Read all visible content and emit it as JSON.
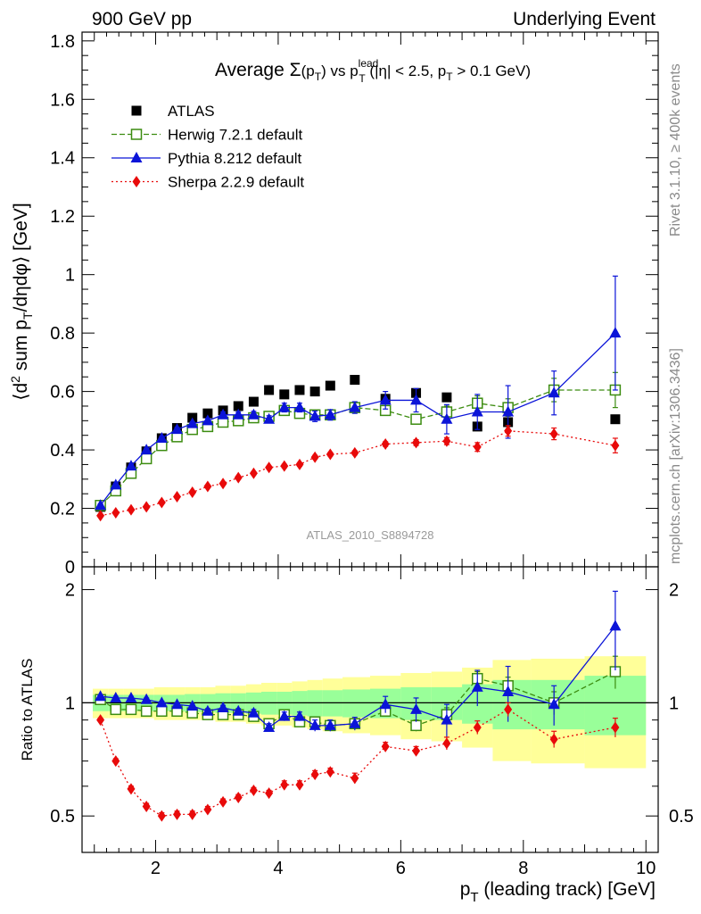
{
  "header": {
    "left": "900 GeV pp",
    "right": "Underlying Event"
  },
  "side": {
    "rivet": "Rivet 3.1.10, ≥ 400k events",
    "mcplots": "mcplots.cern.ch [arXiv:1306.3436]"
  },
  "chart_data": {
    "type": "scatter",
    "title": {
      "prefix": "Average ",
      "sigma": "Σ",
      "sigma_arg": "(p",
      "sigma_sub": "T",
      "sigma_close": ")",
      "vs": " vs p",
      "lead_sup": "lead",
      "lead_sub": "T",
      "cuts_a": " (|η| < 2.5, p",
      "cuts_sub": "T",
      "cuts_b": " > 0.1 GeV)"
    },
    "ylabel": {
      "a": "⟨d",
      "sup": "2",
      "b": " sum p",
      "sub": "T",
      "c": "/dηdφ⟩ [GeV]"
    },
    "xlabel": {
      "a": "p",
      "sub": "T",
      "b": " (leading track) [GeV]"
    },
    "ratio_ylabel": "Ratio to ATLAS",
    "analysis_tag": "ATLAS_2010_S8894728",
    "xlim": [
      0.8,
      10.2
    ],
    "ylim_main": [
      0,
      1.83
    ],
    "ylim_ratio": [
      0.4,
      2.3
    ],
    "yticks_main": [
      "0",
      "0.2",
      "0.4",
      "0.6",
      "0.8",
      "1",
      "1.2",
      "1.4",
      "1.6",
      "1.8"
    ],
    "yticks_ratio": [
      "0.5",
      "1",
      "2"
    ],
    "xticks": [
      "2",
      "4",
      "6",
      "8",
      "10"
    ],
    "legend_position": "top-left",
    "x": [
      1.1,
      1.35,
      1.6,
      1.85,
      2.1,
      2.35,
      2.6,
      2.85,
      3.1,
      3.35,
      3.6,
      3.85,
      4.1,
      4.35,
      4.6,
      4.85,
      5.25,
      5.75,
      6.25,
      6.75,
      7.25,
      7.75,
      8.5,
      9.5
    ],
    "series": [
      {
        "name": "ATLAS",
        "color": "#000000",
        "marker": "square",
        "values": [
          0.205,
          0.275,
          0.34,
          0.395,
          0.44,
          0.475,
          0.51,
          0.525,
          0.535,
          0.55,
          0.565,
          0.605,
          0.59,
          0.605,
          0.6,
          0.62,
          0.64,
          0.575,
          0.595,
          0.58,
          0.48,
          0.495,
          0.605,
          0.505
        ]
      },
      {
        "name": "Herwig 7.2.1 default",
        "color": "#3c8c10",
        "marker": "open-square",
        "line": "dashed",
        "values": [
          0.21,
          0.26,
          0.32,
          0.37,
          0.415,
          0.445,
          0.47,
          0.48,
          0.495,
          0.5,
          0.51,
          0.515,
          0.535,
          0.525,
          0.52,
          0.52,
          0.545,
          0.535,
          0.505,
          0.53,
          0.56,
          0.545,
          0.605,
          0.605
        ],
        "errors": [
          0.005,
          0.005,
          0.005,
          0.005,
          0.005,
          0.005,
          0.005,
          0.005,
          0.005,
          0.005,
          0.005,
          0.005,
          0.008,
          0.008,
          0.008,
          0.008,
          0.01,
          0.015,
          0.015,
          0.02,
          0.025,
          0.03,
          0.04,
          0.06
        ]
      },
      {
        "name": "Pythia 8.212 default",
        "color": "#0b14d8",
        "marker": "triangle",
        "line": "solid",
        "values": [
          0.21,
          0.28,
          0.345,
          0.4,
          0.44,
          0.47,
          0.49,
          0.5,
          0.52,
          0.52,
          0.52,
          0.505,
          0.545,
          0.545,
          0.515,
          0.52,
          0.545,
          0.57,
          0.57,
          0.505,
          0.53,
          0.53,
          0.595,
          0.8
        ],
        "errors": [
          0.005,
          0.005,
          0.006,
          0.006,
          0.006,
          0.007,
          0.007,
          0.008,
          0.01,
          0.01,
          0.012,
          0.012,
          0.015,
          0.015,
          0.018,
          0.018,
          0.02,
          0.03,
          0.04,
          0.05,
          0.06,
          0.09,
          0.075,
          0.195
        ]
      },
      {
        "name": "Sherpa 2.2.9 default",
        "color": "#e80a0a",
        "marker": "diamond",
        "line": "dotted",
        "values": [
          0.175,
          0.185,
          0.195,
          0.205,
          0.22,
          0.24,
          0.255,
          0.275,
          0.285,
          0.305,
          0.32,
          0.34,
          0.345,
          0.35,
          0.375,
          0.385,
          0.39,
          0.42,
          0.425,
          0.43,
          0.41,
          0.465,
          0.455,
          0.415
        ],
        "errors": [
          0.004,
          0.004,
          0.004,
          0.004,
          0.004,
          0.004,
          0.004,
          0.005,
          0.005,
          0.005,
          0.005,
          0.005,
          0.006,
          0.006,
          0.006,
          0.006,
          0.007,
          0.008,
          0.01,
          0.012,
          0.015,
          0.018,
          0.02,
          0.025
        ]
      }
    ],
    "ratio_series": [
      {
        "name": "Herwig 7.2.1 default",
        "values": [
          1.02,
          0.96,
          0.96,
          0.95,
          0.95,
          0.95,
          0.94,
          0.93,
          0.93,
          0.93,
          0.92,
          0.88,
          0.93,
          0.89,
          0.89,
          0.87,
          0.88,
          0.95,
          0.87,
          0.93,
          1.16,
          1.11,
          1.0,
          1.21
        ],
        "errors": [
          0.01,
          0.01,
          0.01,
          0.01,
          0.01,
          0.01,
          0.01,
          0.01,
          0.01,
          0.01,
          0.01,
          0.01,
          0.015,
          0.015,
          0.015,
          0.015,
          0.02,
          0.03,
          0.03,
          0.04,
          0.05,
          0.06,
          0.07,
          0.12
        ]
      },
      {
        "name": "Pythia 8.212 default",
        "values": [
          1.04,
          1.03,
          1.03,
          1.02,
          1.0,
          0.99,
          0.98,
          0.95,
          0.97,
          0.95,
          0.94,
          0.86,
          0.92,
          0.92,
          0.87,
          0.87,
          0.88,
          0.99,
          0.96,
          0.9,
          1.1,
          1.07,
          0.99,
          1.6
        ],
        "errors": [
          0.01,
          0.01,
          0.01,
          0.01,
          0.01,
          0.01,
          0.01,
          0.015,
          0.015,
          0.015,
          0.02,
          0.02,
          0.025,
          0.025,
          0.03,
          0.03,
          0.035,
          0.05,
          0.07,
          0.09,
          0.12,
          0.18,
          0.12,
          0.38
        ]
      },
      {
        "name": "Sherpa 2.2.9 default",
        "values": [
          0.9,
          0.7,
          0.59,
          0.53,
          0.5,
          0.505,
          0.505,
          0.52,
          0.545,
          0.56,
          0.585,
          0.575,
          0.605,
          0.605,
          0.645,
          0.655,
          0.63,
          0.765,
          0.745,
          0.78,
          0.86,
          0.96,
          0.8,
          0.86
        ],
        "errors": [
          0.01,
          0.01,
          0.01,
          0.01,
          0.01,
          0.01,
          0.01,
          0.01,
          0.01,
          0.01,
          0.01,
          0.01,
          0.015,
          0.015,
          0.015,
          0.015,
          0.02,
          0.02,
          0.02,
          0.03,
          0.035,
          0.04,
          0.04,
          0.05
        ]
      }
    ],
    "ratio_band_green": [
      0.05,
      0.05,
      0.05,
      0.05,
      0.05,
      0.05,
      0.055,
      0.055,
      0.06,
      0.06,
      0.065,
      0.07,
      0.07,
      0.075,
      0.08,
      0.08,
      0.085,
      0.09,
      0.1,
      0.1,
      0.12,
      0.15,
      0.15,
      0.18
    ],
    "ratio_band_yellow": [
      0.09,
      0.09,
      0.09,
      0.09,
      0.1,
      0.1,
      0.1,
      0.1,
      0.11,
      0.11,
      0.12,
      0.13,
      0.13,
      0.14,
      0.15,
      0.16,
      0.17,
      0.18,
      0.2,
      0.21,
      0.24,
      0.3,
      0.31,
      0.33
    ]
  }
}
